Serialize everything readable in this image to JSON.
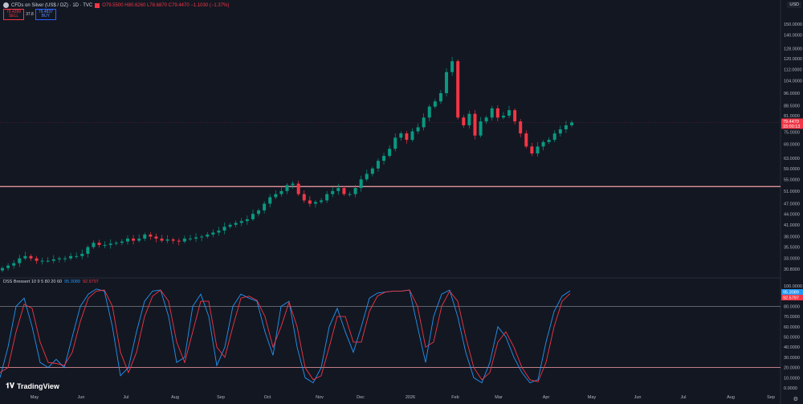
{
  "header": {
    "symbol": "CFDs on Silver (US$ / OZ) · 1D · TVC",
    "ohlc": "O79.5500 H80.6260 L78.6870 C79.4470 −1.1030 (−1.37%)"
  },
  "trade": {
    "sell_price": "79.4399",
    "sell_label": "SELL",
    "spread": "37.8",
    "buy_price": "79.4837",
    "buy_label": "BUY"
  },
  "currency": "USD",
  "indicator": {
    "name": "DSS Bressert 10 9 5 80 20 60",
    "value1": "95.3089",
    "value2": "92.5797"
  },
  "logo": "TradingView",
  "colors": {
    "up": "#089981",
    "down": "#f23645",
    "osc_line1": "#2196f3",
    "osc_line2": "#f23645",
    "level_line": "#f7a1a8",
    "background": "#131722"
  },
  "chart_data": [
    {
      "type": "candlestick",
      "yscale": "log",
      "ylim": [
        30.8,
        150
      ],
      "y_ticks": [
        "150.0000",
        "140.0000",
        "128.0000",
        "120.0000",
        "112.0000",
        "104.0000",
        "96.0000",
        "88.5000",
        "81.0000",
        "75.0000",
        "69.0000",
        "63.0000",
        "59.0000",
        "55.0000",
        "51.0000",
        "47.0000",
        "44.0000",
        "41.0000",
        "38.0000",
        "35.5000",
        "33.0000",
        "30.8000"
      ],
      "x_ticks": [
        "May",
        "Jun",
        "Jul",
        "Aug",
        "Sep",
        "Oct",
        "Nov",
        "Dec",
        "2026",
        "Feb",
        "Mar",
        "Apr",
        "May",
        "Jun",
        "Jul",
        "Aug",
        "Sep"
      ],
      "closes": [
        31,
        31.5,
        32,
        33,
        33.5,
        33,
        32.5,
        32.5,
        32.5,
        32.8,
        33,
        33,
        33.5,
        33.5,
        34,
        35.5,
        36.5,
        36,
        36,
        36.3,
        36.5,
        36.8,
        37.5,
        37,
        37.5,
        38.5,
        38,
        37.5,
        37,
        37.3,
        37,
        36.8,
        37.5,
        37.5,
        37.8,
        38,
        38.5,
        39,
        39.5,
        40.5,
        41,
        41.5,
        42,
        42.5,
        44,
        45,
        47,
        49,
        50,
        51,
        53,
        53.5,
        50,
        48,
        47,
        47.5,
        48,
        50,
        51,
        52,
        50,
        50,
        52,
        55,
        57,
        59,
        62,
        64,
        67,
        72,
        74,
        71,
        75,
        77,
        82,
        88,
        91,
        96,
        110,
        118,
        82,
        78,
        84,
        73,
        80,
        82,
        87,
        82,
        83,
        86,
        80,
        74,
        68,
        65,
        68,
        70,
        71,
        74,
        76,
        78,
        79.447
      ],
      "horizontal_line": 52.5,
      "last_price": "79.4470",
      "countdown": "15:00:13"
    },
    {
      "type": "line",
      "ylim": [
        0,
        100
      ],
      "y_ticks": [
        "100.0000",
        "80.0000",
        "70.0000",
        "60.0000",
        "50.0000",
        "40.0000",
        "30.0000",
        "20.0000",
        "10.0000",
        "0.0000"
      ],
      "levels": [
        80,
        20
      ],
      "series": [
        {
          "values": [
            10,
            40,
            80,
            88,
            60,
            25,
            20,
            28,
            20,
            50,
            80,
            92,
            97,
            95,
            60,
            12,
            20,
            55,
            85,
            95,
            96,
            70,
            25,
            30,
            80,
            92,
            70,
            22,
            40,
            80,
            92,
            88,
            85,
            55,
            32,
            80,
            85,
            40,
            10,
            5,
            20,
            60,
            78,
            55,
            35,
            60,
            88,
            93,
            94,
            95,
            95,
            96,
            60,
            25,
            70,
            92,
            96,
            70,
            35,
            10,
            5,
            25,
            60,
            50,
            30,
            15,
            5,
            8,
            45,
            75,
            90,
            95.3089
          ]
        },
        {
          "values": [
            15,
            20,
            55,
            82,
            78,
            45,
            25,
            24,
            22,
            35,
            65,
            88,
            95,
            96,
            80,
            35,
            15,
            35,
            70,
            90,
            96,
            85,
            45,
            25,
            55,
            85,
            85,
            40,
            30,
            60,
            88,
            90,
            86,
            70,
            40,
            60,
            84,
            60,
            20,
            8,
            12,
            40,
            70,
            70,
            45,
            45,
            75,
            90,
            94,
            95,
            95,
            96,
            80,
            40,
            45,
            80,
            95,
            85,
            50,
            20,
            8,
            15,
            45,
            55,
            40,
            20,
            8,
            6,
            25,
            60,
            85,
            92.5797
          ]
        }
      ]
    }
  ]
}
